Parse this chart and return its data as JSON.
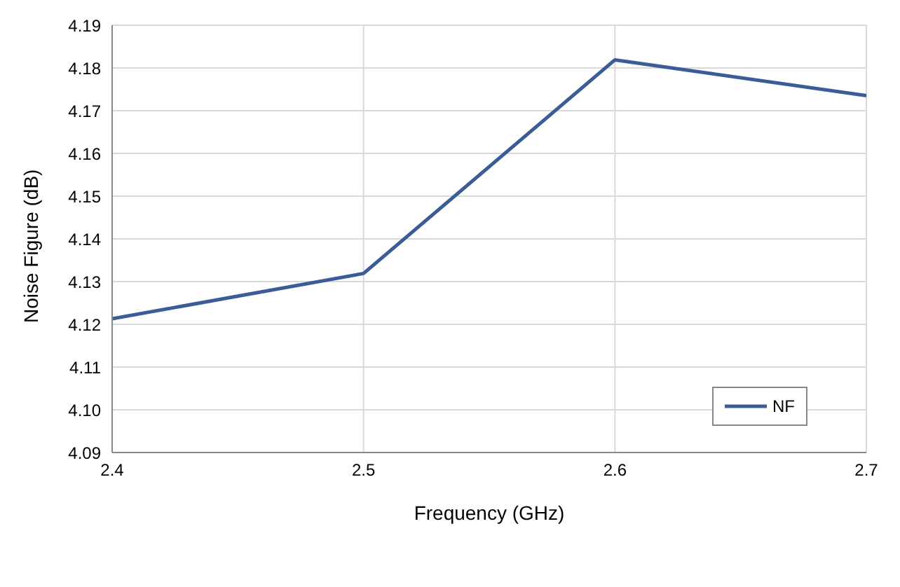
{
  "chart_data": {
    "type": "line",
    "xlabel": "Frequency (GHz)",
    "ylabel": "Noise Figure (dB)",
    "x": [
      2.4,
      2.5,
      2.6,
      2.7
    ],
    "series": [
      {
        "name": "NF",
        "color": "#3b5d97",
        "values": [
          4.1213,
          4.1319,
          4.1819,
          4.1735
        ]
      }
    ],
    "xlim": [
      2.4,
      2.7
    ],
    "xticks": [
      2.4,
      2.5,
      2.6,
      2.7
    ],
    "ylim": [
      4.09,
      4.19
    ],
    "yticks": [
      4.09,
      {
        "value": 4.1,
        "label": "4.10"
      },
      4.11,
      4.12,
      4.13,
      4.14,
      4.15,
      4.16,
      4.17,
      4.18,
      4.19
    ],
    "grid": true,
    "legend": "bottom right",
    "marker": "none",
    "line_style": "solid"
  }
}
